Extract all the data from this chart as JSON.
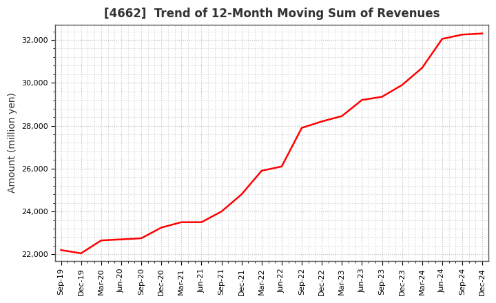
{
  "title": "[4662]  Trend of 12-Month Moving Sum of Revenues",
  "ylabel": "Amount (million yen)",
  "line_color": "#ff0000",
  "background_color": "#ffffff",
  "plot_bg_color": "#ffffff",
  "grid_color": "#bbbbbb",
  "title_color": "#333333",
  "ylim": [
    21700,
    32700
  ],
  "yticks": [
    22000,
    24000,
    26000,
    28000,
    30000,
    32000
  ],
  "values": [
    22200,
    22050,
    22650,
    22700,
    22750,
    23250,
    23500,
    23500,
    24000,
    24800,
    25900,
    26100,
    27900,
    28200,
    28450,
    29200,
    29350,
    29900,
    30700,
    32050,
    32250,
    32300
  ],
  "xtick_labels": [
    "Sep-19",
    "Dec-19",
    "Mar-20",
    "Jun-20",
    "Sep-20",
    "Dec-20",
    "Mar-21",
    "Jun-21",
    "Sep-21",
    "Dec-21",
    "Mar-22",
    "Jun-22",
    "Sep-22",
    "Dec-22",
    "Mar-23",
    "Jun-23",
    "Sep-23",
    "Dec-23",
    "Mar-24",
    "Jun-24",
    "Sep-24",
    "Dec-24"
  ],
  "title_fontsize": 12,
  "label_fontsize": 10,
  "tick_fontsize": 8,
  "line_width": 1.8
}
